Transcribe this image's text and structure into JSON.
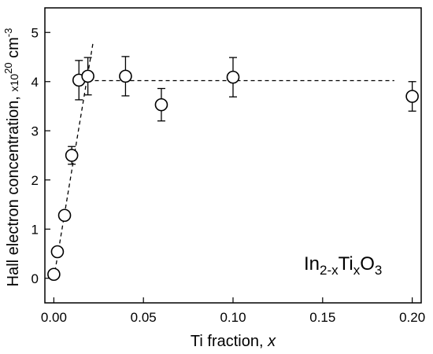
{
  "chart_data": {
    "type": "scatter",
    "xlabel": {
      "main": "Ti fraction, ",
      "var": "x"
    },
    "ylabel": {
      "main": "Hall electron concentration, ",
      "unit_prefix": "x10",
      "exp": "20",
      "unit": " cm",
      "unit_exp": "-3"
    },
    "xlim": [
      -0.005,
      0.205
    ],
    "ylim": [
      -0.5,
      5.5
    ],
    "x_ticks": [
      {
        "v": 0.0,
        "label": "0.00"
      },
      {
        "v": 0.05,
        "label": "0.05"
      },
      {
        "v": 0.1,
        "label": "0.10"
      },
      {
        "v": 0.15,
        "label": "0.15"
      },
      {
        "v": 0.2,
        "label": "0.20"
      }
    ],
    "y_ticks": [
      {
        "v": 0,
        "label": "0"
      },
      {
        "v": 1,
        "label": "1"
      },
      {
        "v": 2,
        "label": "2"
      },
      {
        "v": 3,
        "label": "3"
      },
      {
        "v": 4,
        "label": "4"
      },
      {
        "v": 5,
        "label": "5"
      }
    ],
    "points": [
      {
        "x": 0.0,
        "y": 0.08,
        "err": null
      },
      {
        "x": 0.002,
        "y": 0.54,
        "err": null
      },
      {
        "x": 0.006,
        "y": 1.28,
        "err": null
      },
      {
        "x": 0.01,
        "y": 2.5,
        "err": 0.18
      },
      {
        "x": 0.014,
        "y": 4.03,
        "err": 0.4
      },
      {
        "x": 0.019,
        "y": 4.11,
        "err": 0.38
      },
      {
        "x": 0.04,
        "y": 4.11,
        "err": 0.4
      },
      {
        "x": 0.06,
        "y": 3.53,
        "err": 0.33
      },
      {
        "x": 0.1,
        "y": 4.09,
        "err": 0.4
      },
      {
        "x": 0.2,
        "y": 3.7,
        "err": 0.3
      }
    ],
    "fit_lines": [
      {
        "from": [
          0.0,
          0.0
        ],
        "to": [
          0.022,
          4.82
        ]
      },
      {
        "from": [
          0.015,
          4.02
        ],
        "to": [
          0.19,
          4.02
        ]
      }
    ],
    "annotation": {
      "base": "In",
      "s1": "2-x",
      "mid": "Ti",
      "s2": "x",
      "tail": "O",
      "s3": "3"
    },
    "grid": false,
    "legend": "none"
  }
}
